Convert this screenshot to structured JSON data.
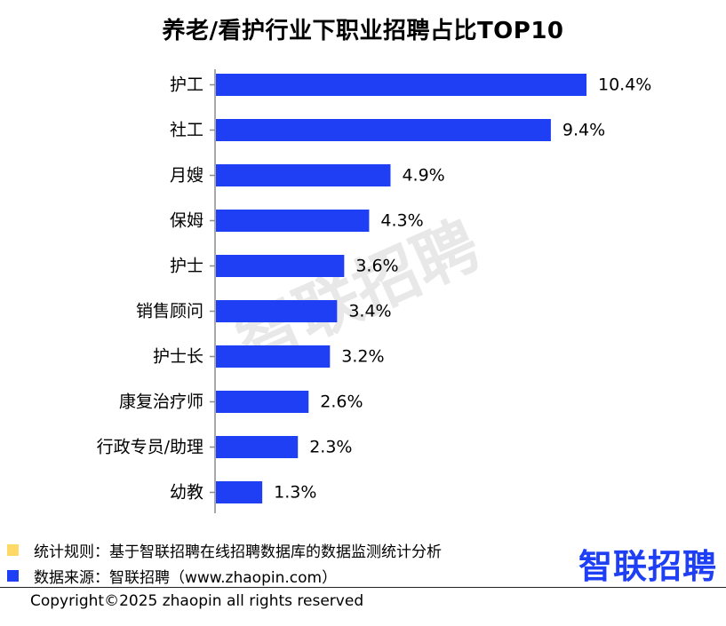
{
  "colors": {
    "bar": "#1f3ff5",
    "axis": "#8c8c8c",
    "watermark": "#d9d9d9",
    "swatch_rule": "#ffd966",
    "swatch_source": "#1f3ff5",
    "logo": "#1f3ff5"
  },
  "chart_data": {
    "type": "bar",
    "orientation": "horizontal",
    "title": "养老/看护行业下职业招聘占比TOP10",
    "xlabel": "",
    "ylabel": "",
    "xlim": [
      0,
      11.2
    ],
    "grid": false,
    "legend": "none",
    "categories": [
      "护工",
      "社工",
      "月嫂",
      "保姆",
      "护士",
      "销售顾问",
      "护士长",
      "康复治疗师",
      "行政专员/助理",
      "幼教"
    ],
    "values": [
      10.4,
      9.4,
      4.9,
      4.3,
      3.6,
      3.4,
      3.2,
      2.6,
      2.3,
      1.3
    ],
    "value_labels": [
      "10.4%",
      "9.4%",
      "4.9%",
      "4.3%",
      "3.6%",
      "3.4%",
      "3.2%",
      "2.6%",
      "2.3%",
      "1.3%"
    ],
    "watermark": "智联招聘"
  },
  "footer": {
    "rule_text": "统计规则：基于智联招聘在线招聘数据库的数据监测统计分析",
    "source_text": "数据来源：智联招聘（www.zhaopin.com）",
    "copyright": "Copyright©2025 zhaopin all rights reserved",
    "logo_text": "智联招聘"
  }
}
